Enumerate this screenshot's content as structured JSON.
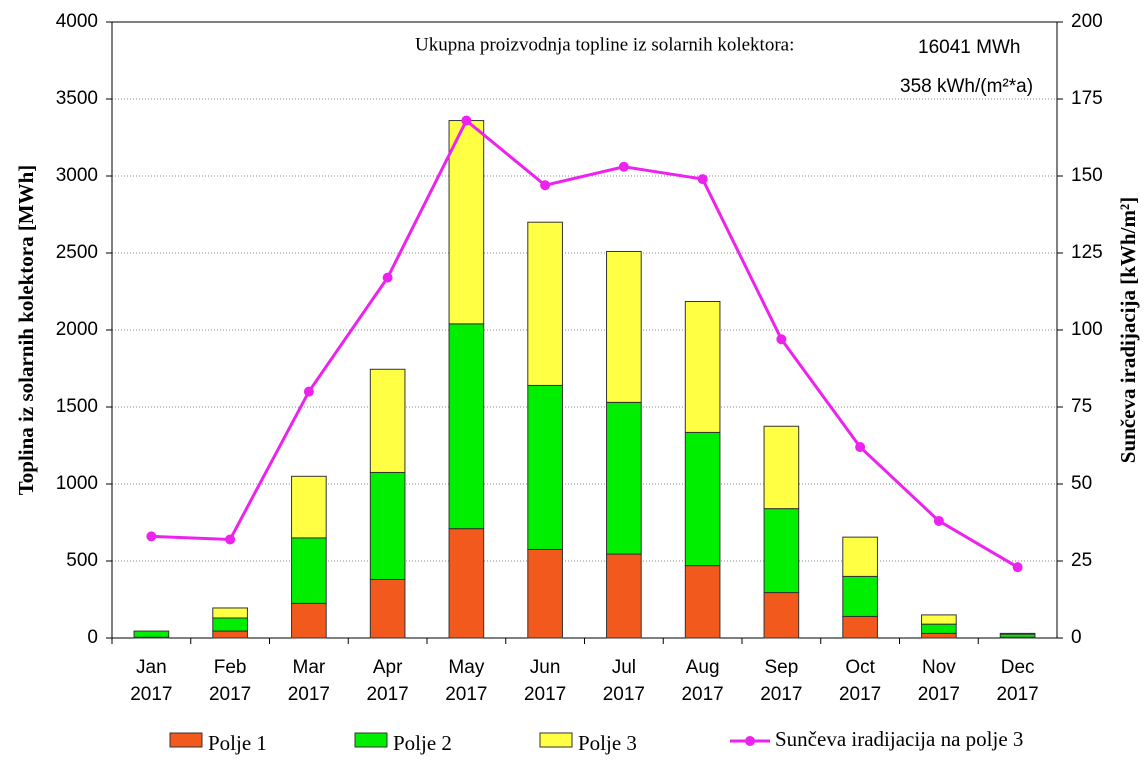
{
  "chart_data": {
    "type": "bar",
    "title_annotation": "Ukupna proizvodnja topline iz solarnih kolektora:",
    "total_annotation": "16041 MWh",
    "specific_annotation": "358 kWh/(m²*a)",
    "y_label": "Toplina iz solarnih kolektora [MWh]",
    "y2_label": "Sunčeva iradijacija [kWh/m²]",
    "categories": [
      "Jan 2017",
      "Feb 2017",
      "Mar 2017",
      "Apr 2017",
      "May 2017",
      "Jun 2017",
      "Jul 2017",
      "Aug 2017",
      "Sep 2017",
      "Oct 2017",
      "Nov 2017",
      "Dec 2017"
    ],
    "stacked": true,
    "series": [
      {
        "name": "Polje 1",
        "color": "#f25a1d",
        "values": [
          5,
          45,
          225,
          380,
          710,
          575,
          545,
          470,
          295,
          140,
          30,
          5
        ]
      },
      {
        "name": "Polje 2",
        "color": "#00ee00",
        "values": [
          40,
          85,
          425,
          695,
          1330,
          1065,
          985,
          865,
          545,
          260,
          60,
          20
        ]
      },
      {
        "name": "Polje 3",
        "color": "#ffff44",
        "values": [
          0,
          65,
          400,
          670,
          1320,
          1060,
          980,
          850,
          535,
          255,
          60,
          5
        ]
      },
      {
        "name": "Sunčeva iradijacija na polje 3",
        "color": "#ee22ee",
        "type": "line",
        "axis": "y2",
        "values": [
          33,
          32,
          80,
          117,
          168,
          147,
          153,
          149,
          97,
          62,
          38,
          23
        ]
      }
    ],
    "ylim": [
      0,
      4000
    ],
    "yticks": [
      0,
      500,
      1000,
      1500,
      2000,
      2500,
      3000,
      3500,
      4000
    ],
    "y2lim": [
      0,
      200
    ],
    "y2ticks": [
      0,
      25,
      50,
      75,
      100,
      125,
      150,
      175,
      200
    ],
    "grid": true,
    "legend": "bottom"
  }
}
